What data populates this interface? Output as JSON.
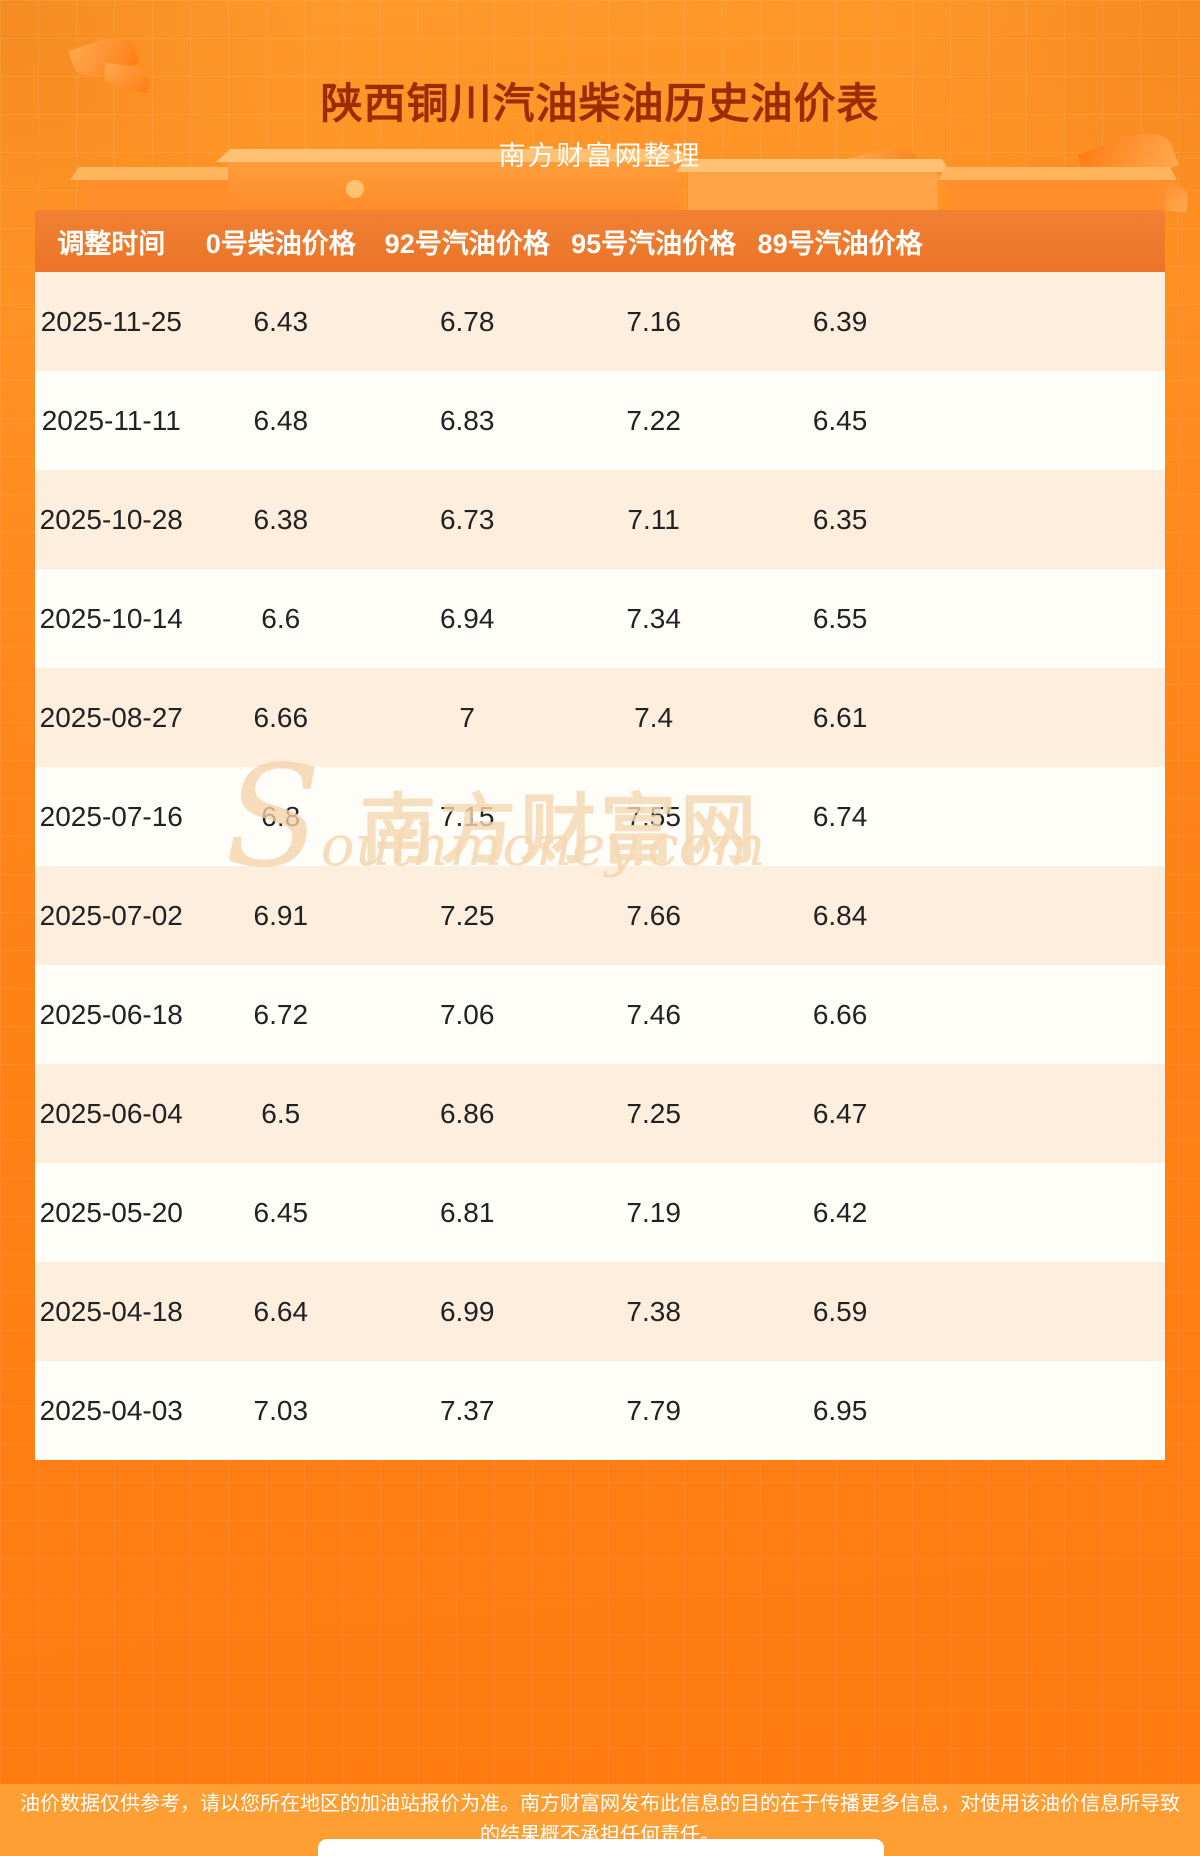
{
  "page": {
    "title": "陕西铜川汽油柴油历史油价表",
    "subtitle": "南方财富网整理",
    "footer": "油价数据仅供参考，请以您所在地区的加油站报价为准。南方财富网发布此信息的目的在于传播更多信息，对使用该油价信息所导致的结果概不承担任何责任。"
  },
  "watermark": {
    "cn": "南方财富网",
    "en": "Southmoney.com"
  },
  "colors": {
    "background_top": "#ff9a2b",
    "background_bottom": "#ff7a10",
    "header_row": "#ee7c30",
    "row_peach": "#fdeede",
    "row_white": "#fffdf8",
    "title_text": "#9b2c00",
    "footer_band": "#ff9e33",
    "body_text": "#222222"
  },
  "chart_data": {
    "type": "table",
    "title": "陕西铜川汽油柴油历史油价表",
    "columns": [
      "调整时间",
      "0号柴油价格",
      "92号汽油价格",
      "95号汽油价格",
      "89号汽油价格"
    ],
    "rows": [
      [
        "2025-11-25",
        "6.43",
        "6.78",
        "7.16",
        "6.39"
      ],
      [
        "2025-11-11",
        "6.48",
        "6.83",
        "7.22",
        "6.45"
      ],
      [
        "2025-10-28",
        "6.38",
        "6.73",
        "7.11",
        "6.35"
      ],
      [
        "2025-10-14",
        "6.6",
        "6.94",
        "7.34",
        "6.55"
      ],
      [
        "2025-08-27",
        "6.66",
        "7",
        "7.4",
        "6.61"
      ],
      [
        "2025-07-16",
        "6.8",
        "7.15",
        "7.55",
        "6.74"
      ],
      [
        "2025-07-02",
        "6.91",
        "7.25",
        "7.66",
        "6.84"
      ],
      [
        "2025-06-18",
        "6.72",
        "7.06",
        "7.46",
        "6.66"
      ],
      [
        "2025-06-04",
        "6.5",
        "6.86",
        "7.25",
        "6.47"
      ],
      [
        "2025-05-20",
        "6.45",
        "6.81",
        "7.19",
        "6.42"
      ],
      [
        "2025-04-18",
        "6.64",
        "6.99",
        "7.38",
        "6.59"
      ],
      [
        "2025-04-03",
        "7.03",
        "7.37",
        "7.79",
        "6.95"
      ]
    ]
  }
}
